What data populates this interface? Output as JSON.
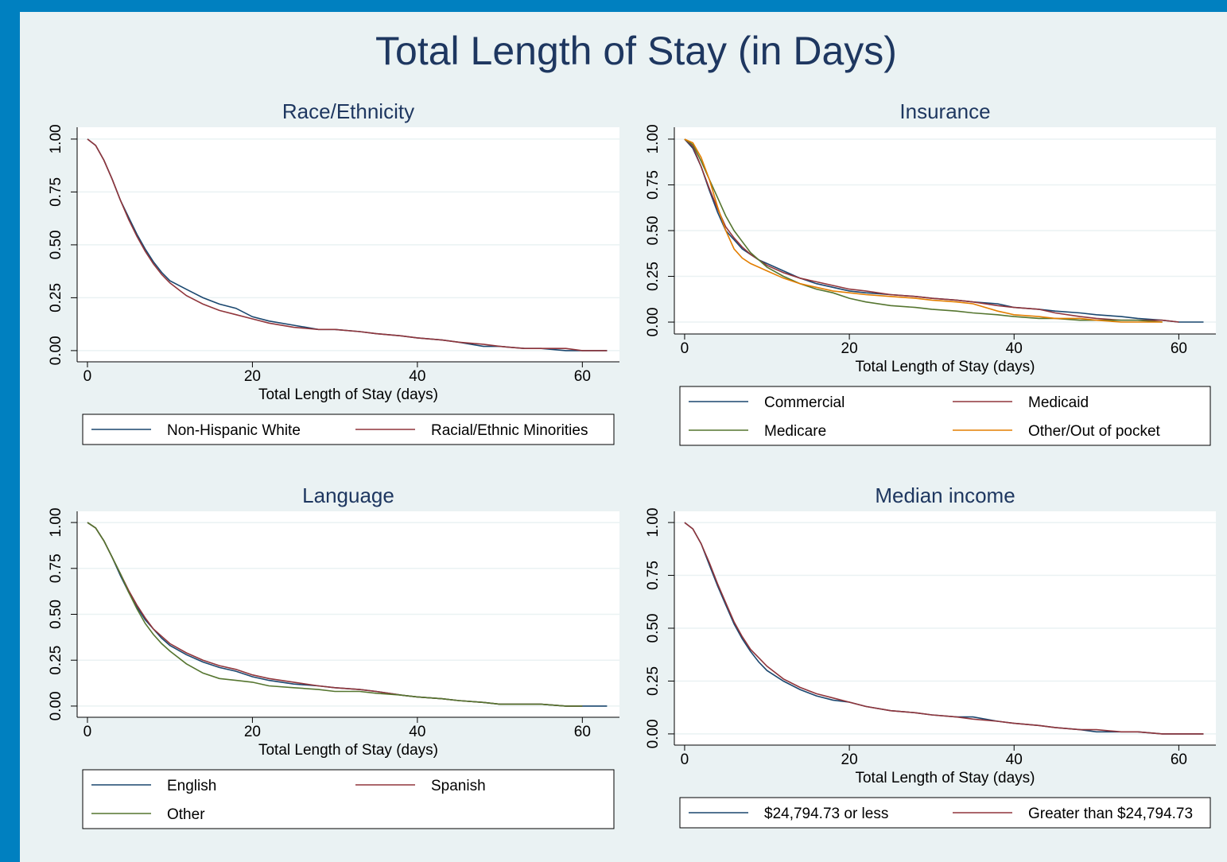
{
  "title": "Total Length of Stay (in Days)",
  "chart_data": [
    {
      "type": "line",
      "title": "Race/Ethnicity",
      "xlabel": "Total Length of Stay (days)",
      "x": [
        0,
        1,
        2,
        3,
        4,
        5,
        6,
        7,
        8,
        9,
        10,
        12,
        14,
        16,
        18,
        20,
        22,
        25,
        28,
        30,
        33,
        35,
        38,
        40,
        43,
        45,
        48,
        50,
        53,
        55,
        58,
        60,
        63
      ],
      "series": [
        {
          "name": "Non-Hispanic White",
          "color": "#1a476f",
          "values": [
            1,
            0.97,
            0.9,
            0.81,
            0.71,
            0.63,
            0.55,
            0.48,
            0.42,
            0.37,
            0.33,
            0.29,
            0.25,
            0.22,
            0.2,
            0.16,
            0.14,
            0.12,
            0.1,
            0.1,
            0.09,
            0.08,
            0.07,
            0.06,
            0.05,
            0.04,
            0.02,
            0.02,
            0.01,
            0.01,
            0,
            0,
            0
          ]
        },
        {
          "name": "Racial/Ethnic Minorities",
          "color": "#90353b",
          "values": [
            1,
            0.97,
            0.9,
            0.81,
            0.71,
            0.62,
            0.54,
            0.47,
            0.41,
            0.36,
            0.32,
            0.26,
            0.22,
            0.19,
            0.17,
            0.15,
            0.13,
            0.11,
            0.1,
            0.1,
            0.09,
            0.08,
            0.07,
            0.06,
            0.05,
            0.04,
            0.03,
            0.02,
            0.01,
            0.01,
            0.01,
            0,
            0
          ]
        }
      ],
      "xlim": [
        -1.25,
        64.5
      ],
      "ylim": [
        -0.053,
        1.056
      ],
      "xticks": [
        0,
        20,
        40,
        60
      ],
      "yticks": [
        {
          "value": 0,
          "label": "0.00"
        },
        {
          "value": 0.25,
          "label": "0.25"
        },
        {
          "value": 0.5,
          "label": "0.50"
        },
        {
          "value": 0.75,
          "label": "0.75"
        },
        {
          "value": 1,
          "label": "1.00"
        }
      ],
      "grid": true
    },
    {
      "type": "line",
      "title": "Insurance",
      "xlabel": "Total Length of Stay (days)",
      "x": [
        0,
        1,
        2,
        3,
        4,
        5,
        6,
        7,
        8,
        9,
        10,
        12,
        14,
        16,
        18,
        20,
        22,
        25,
        28,
        30,
        33,
        35,
        38,
        40,
        43,
        45,
        48,
        50,
        53,
        55,
        58,
        60,
        63
      ],
      "series": [
        {
          "name": "Commercial",
          "color": "#1a476f",
          "values": [
            1,
            0.95,
            0.85,
            0.72,
            0.6,
            0.5,
            0.45,
            0.4,
            0.37,
            0.34,
            0.32,
            0.28,
            0.24,
            0.21,
            0.19,
            0.17,
            0.16,
            0.15,
            0.14,
            0.13,
            0.12,
            0.11,
            0.1,
            0.08,
            0.07,
            0.06,
            0.05,
            0.04,
            0.03,
            0.02,
            0.01,
            0,
            0
          ]
        },
        {
          "name": "Medicaid",
          "color": "#90353b",
          "values": [
            1,
            0.96,
            0.85,
            0.73,
            0.62,
            0.52,
            0.46,
            0.41,
            0.37,
            0.34,
            0.31,
            0.27,
            0.24,
            0.22,
            0.2,
            0.18,
            0.17,
            0.15,
            0.14,
            0.13,
            0.12,
            0.11,
            0.09,
            0.08,
            0.07,
            0.05,
            0.03,
            0.02,
            0.01,
            0.01,
            0.01,
            0,
            null
          ]
        },
        {
          "name": "Medicare",
          "color": "#55752f",
          "values": [
            1,
            0.97,
            0.88,
            0.78,
            0.68,
            0.58,
            0.5,
            0.44,
            0.38,
            0.34,
            0.3,
            0.25,
            0.21,
            0.18,
            0.16,
            0.13,
            0.11,
            0.09,
            0.08,
            0.07,
            0.06,
            0.05,
            0.04,
            0.03,
            0.02,
            0.02,
            0.01,
            0.01,
            0.01,
            0.01,
            0,
            null,
            null
          ]
        },
        {
          "name": "Other/Out of pocket",
          "color": "#e37e00",
          "values": [
            1,
            0.98,
            0.9,
            0.78,
            0.63,
            0.5,
            0.4,
            0.35,
            0.32,
            0.3,
            0.28,
            0.24,
            0.21,
            0.19,
            0.17,
            0.16,
            0.15,
            0.14,
            0.13,
            0.12,
            0.11,
            0.1,
            0.06,
            0.04,
            0.03,
            0.02,
            0.02,
            0.01,
            0,
            0,
            0,
            null,
            null
          ]
        }
      ],
      "xlim": [
        -1.25,
        64.5
      ],
      "ylim": [
        -0.065,
        1.065
      ],
      "xticks": [
        0,
        20,
        40,
        60
      ],
      "yticks": [
        {
          "value": 0,
          "label": "0.00"
        },
        {
          "value": 0.25,
          "label": "0.25"
        },
        {
          "value": 0.5,
          "label": "0.50"
        },
        {
          "value": 0.75,
          "label": "0.75"
        },
        {
          "value": 1,
          "label": "1.00"
        }
      ],
      "grid": true
    },
    {
      "type": "line",
      "title": "Language",
      "xlabel": "Total Length of Stay (days)",
      "x": [
        0,
        1,
        2,
        3,
        4,
        5,
        6,
        7,
        8,
        9,
        10,
        12,
        14,
        16,
        18,
        20,
        22,
        25,
        28,
        30,
        33,
        35,
        38,
        40,
        43,
        45,
        48,
        50,
        53,
        55,
        58,
        60,
        63
      ],
      "series": [
        {
          "name": "English",
          "color": "#1a476f",
          "values": [
            1,
            0.97,
            0.9,
            0.81,
            0.71,
            0.62,
            0.54,
            0.47,
            0.42,
            0.37,
            0.33,
            0.28,
            0.24,
            0.21,
            0.19,
            0.16,
            0.14,
            0.12,
            0.11,
            0.1,
            0.09,
            0.08,
            0.06,
            0.05,
            0.04,
            0.03,
            0.02,
            0.01,
            0.01,
            0.01,
            0,
            0,
            0
          ]
        },
        {
          "name": "Spanish",
          "color": "#90353b",
          "values": [
            1,
            0.97,
            0.9,
            0.81,
            0.72,
            0.63,
            0.55,
            0.48,
            0.42,
            0.38,
            0.34,
            0.29,
            0.25,
            0.22,
            0.2,
            0.17,
            0.15,
            0.13,
            0.11,
            0.1,
            0.09,
            0.08,
            0.06,
            0.05,
            0.04,
            0.03,
            0.02,
            0.01,
            0.01,
            0.01,
            0,
            0,
            null
          ]
        },
        {
          "name": "Other",
          "color": "#55752f",
          "values": [
            1,
            0.97,
            0.9,
            0.81,
            0.72,
            0.62,
            0.53,
            0.45,
            0.39,
            0.34,
            0.3,
            0.23,
            0.18,
            0.15,
            0.14,
            0.13,
            0.11,
            0.1,
            0.09,
            0.08,
            0.08,
            0.07,
            0.06,
            0.05,
            0.04,
            0.03,
            0.02,
            0.01,
            0.01,
            0.01,
            0,
            0,
            null
          ]
        }
      ],
      "xlim": [
        -1.25,
        64.5
      ],
      "ylim": [
        -0.061,
        1.061
      ],
      "xticks": [
        0,
        20,
        40,
        60
      ],
      "yticks": [
        {
          "value": 0,
          "label": "0.00"
        },
        {
          "value": 0.25,
          "label": "0.25"
        },
        {
          "value": 0.5,
          "label": "0.50"
        },
        {
          "value": 0.75,
          "label": "0.75"
        },
        {
          "value": 1,
          "label": "1.00"
        }
      ],
      "grid": true
    },
    {
      "type": "line",
      "title": "Median income",
      "xlabel": "Total Length of Stay (days)",
      "x": [
        0,
        1,
        2,
        3,
        4,
        5,
        6,
        7,
        8,
        9,
        10,
        12,
        14,
        16,
        18,
        20,
        22,
        25,
        28,
        30,
        33,
        35,
        38,
        40,
        43,
        45,
        48,
        50,
        53,
        55,
        58,
        60,
        63
      ],
      "series": [
        {
          "name": "$24,794.73 or less",
          "color": "#1a476f",
          "values": [
            1,
            0.97,
            0.9,
            0.8,
            0.7,
            0.61,
            0.52,
            0.45,
            0.39,
            0.34,
            0.3,
            0.25,
            0.21,
            0.18,
            0.16,
            0.15,
            0.13,
            0.11,
            0.1,
            0.09,
            0.08,
            0.08,
            0.06,
            0.05,
            0.04,
            0.03,
            0.02,
            0.01,
            0.01,
            0.01,
            0,
            0,
            0
          ]
        },
        {
          "name": "Greater than $24,794.73",
          "color": "#90353b",
          "values": [
            1,
            0.97,
            0.9,
            0.81,
            0.71,
            0.62,
            0.53,
            0.46,
            0.4,
            0.36,
            0.32,
            0.26,
            0.22,
            0.19,
            0.17,
            0.15,
            0.13,
            0.11,
            0.1,
            0.09,
            0.08,
            0.07,
            0.06,
            0.05,
            0.04,
            0.03,
            0.02,
            0.02,
            0.01,
            0.01,
            0,
            0,
            0
          ]
        }
      ],
      "xlim": [
        -1.25,
        64.5
      ],
      "ylim": [
        -0.053,
        1.053
      ],
      "xticks": [
        0,
        20,
        40,
        60
      ],
      "yticks": [
        {
          "value": 0,
          "label": "0.00"
        },
        {
          "value": 0.25,
          "label": "0.25"
        },
        {
          "value": 0.5,
          "label": "0.50"
        },
        {
          "value": 0.75,
          "label": "0.75"
        },
        {
          "value": 1,
          "label": "1.00"
        }
      ],
      "grid": true
    }
  ]
}
